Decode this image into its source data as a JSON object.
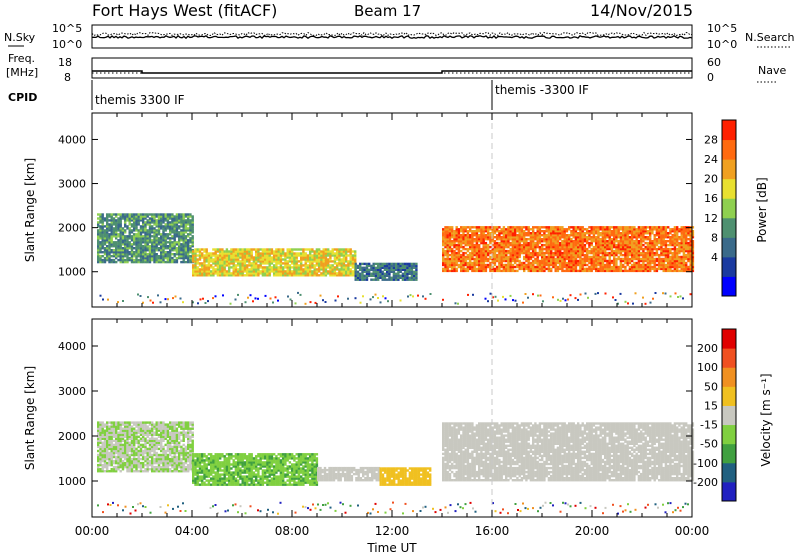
{
  "header": {
    "title": "Fort Hays West (fitACF)",
    "beam": "Beam 17",
    "date": "14/Nov/2015"
  },
  "noise_panel": {
    "left_label": "N.Sky",
    "right_label": "N.Search",
    "tick_top": "10^5",
    "tick_bottom": "10^0"
  },
  "freq_panel": {
    "left_label_1": "Freq.",
    "left_label_2": "[MHz]",
    "left_tick_top": "18",
    "left_tick_bottom": "8",
    "right_label": "Nave",
    "right_tick_top": "60",
    "right_tick_bottom": "0"
  },
  "cpid_panel": {
    "label": "CPID",
    "entry_1": "themis 3300 IF",
    "entry_2": "themis -3300 IF"
  },
  "power_panel": {
    "ylabel": "Slant Range [km]",
    "yticks": [
      "4000",
      "3000",
      "2000",
      "1000"
    ],
    "colorbar_label": "Power [dB]",
    "colorbar_ticks": [
      "28",
      "24",
      "20",
      "16",
      "12",
      "8",
      "4"
    ],
    "colors": [
      "#0000ff",
      "#1a3aa0",
      "#3a6a8a",
      "#4e9070",
      "#8fd050",
      "#e8e030",
      "#f0a020",
      "#ff6a10",
      "#ff2000"
    ]
  },
  "velocity_panel": {
    "ylabel": "Slant Range [km]",
    "yticks": [
      "4000",
      "3000",
      "2000",
      "1000"
    ],
    "colorbar_label": "Velocity [m s⁻¹]",
    "colorbar_ticks": [
      "200",
      "100",
      "50",
      "15",
      "-15",
      "-50",
      "-100",
      "-200"
    ],
    "colors": [
      "#2020c0",
      "#206080",
      "#40a040",
      "#80d040",
      "#c8c8c0",
      "#f0c020",
      "#f09020",
      "#f05020",
      "#e00000"
    ]
  },
  "xaxis": {
    "label": "Time UT",
    "ticks": [
      "00:00",
      "04:00",
      "08:00",
      "12:00",
      "16:00",
      "20:00",
      "00:00"
    ]
  },
  "chart_data": {
    "type": "heatmap",
    "title": "Fort Hays West (fitACF)",
    "subtitle": "Beam 17",
    "date": "14/Nov/2015",
    "xlabel": "Time UT",
    "xlim": [
      0,
      24
    ],
    "panels": [
      {
        "name": "N.Sky / N.Search",
        "yscale": "log",
        "ylim": [
          1,
          100000
        ]
      },
      {
        "name": "Freq. / Nave",
        "ylabel_left": "Freq. [MHz]",
        "ylim_left": [
          8,
          18
        ],
        "ylabel_right": "Nave",
        "ylim_right": [
          0,
          60
        ],
        "freq_steps": [
          {
            "t_start": 0,
            "t_end": 2,
            "freq": 11.5
          },
          {
            "t_start": 2,
            "t_end": 14,
            "freq": 10.5
          },
          {
            "t_start": 14,
            "t_end": 24,
            "freq": 11.5
          }
        ]
      },
      {
        "name": "CPID",
        "segments": [
          {
            "t_start": 0,
            "t_end": 16,
            "label": "themis 3300 IF"
          },
          {
            "t_start": 16,
            "t_end": 24,
            "label": "themis -3300 IF"
          }
        ]
      },
      {
        "name": "Power",
        "ylabel": "Slant Range [km]",
        "ylim": [
          200,
          4600
        ],
        "colorbar": "Power [dB]",
        "clim": [
          0,
          32
        ],
        "scatter_bands": [
          {
            "t_start": 0.2,
            "t_end": 4,
            "range_low": 1200,
            "range_high": 2300,
            "power": 12
          },
          {
            "t_start": 4,
            "t_end": 10.5,
            "range_low": 900,
            "range_high": 1500,
            "power": 20
          },
          {
            "t_start": 10.5,
            "t_end": 13,
            "range_low": 800,
            "range_high": 1200,
            "power": 10
          },
          {
            "t_start": 14,
            "t_end": 24,
            "range_low": 1000,
            "range_high": 2000,
            "power": 26
          }
        ]
      },
      {
        "name": "Velocity",
        "ylabel": "Slant Range [km]",
        "ylim": [
          200,
          4600
        ],
        "colorbar": "Velocity [m s⁻¹]",
        "clim": [
          -200,
          200
        ],
        "scatter_bands": [
          {
            "t_start": 0.2,
            "t_end": 4,
            "range_low": 1200,
            "range_high": 2300,
            "velocity": -20
          },
          {
            "t_start": 4,
            "t_end": 9,
            "range_low": 900,
            "range_high": 1600,
            "velocity": -60
          },
          {
            "t_start": 9,
            "t_end": 11.5,
            "range_low": 1000,
            "range_high": 1300,
            "velocity": 0
          },
          {
            "t_start": 11.5,
            "t_end": 13.5,
            "range_low": 900,
            "range_high": 1300,
            "velocity": 40
          },
          {
            "t_start": 14,
            "t_end": 24,
            "range_low": 1000,
            "range_high": 2300,
            "velocity": 0
          }
        ]
      }
    ]
  }
}
